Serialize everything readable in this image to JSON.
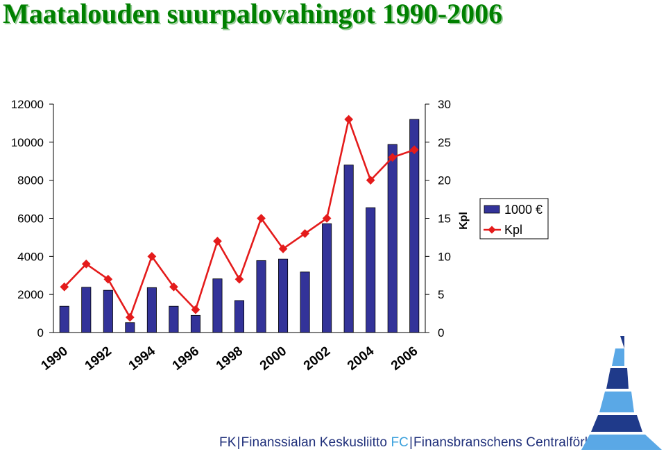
{
  "page": {
    "title": "Maatalouden suurpalovahingot 1990-2006"
  },
  "chart_data": {
    "type": "bar",
    "title": "Maatalouden suurpalovahingot 1990-2006",
    "x": [
      1990,
      1991,
      1992,
      1993,
      1994,
      1995,
      1996,
      1997,
      1998,
      1999,
      2000,
      2001,
      2002,
      2003,
      2004,
      2005,
      2006
    ],
    "x_tick_labels": [
      "1990",
      "1992",
      "1994",
      "1996",
      "1998",
      "2000",
      "2002",
      "2004",
      "2006"
    ],
    "y_left": {
      "range": [
        0,
        12000
      ],
      "ticks": [
        0,
        2000,
        4000,
        6000,
        8000,
        10000,
        12000
      ]
    },
    "y_right": {
      "label": "Kpl",
      "range": [
        0,
        30
      ],
      "ticks": [
        0,
        5,
        10,
        15,
        20,
        25,
        30
      ]
    },
    "grid": false,
    "legend_position": "right",
    "series": [
      {
        "name": "1000 €",
        "type": "bar",
        "axis": "left",
        "color": "#333399",
        "values": [
          1380,
          2380,
          2220,
          520,
          2360,
          1380,
          900,
          2820,
          1680,
          3780,
          3860,
          3180,
          5720,
          8800,
          6560,
          9880,
          11200
        ]
      },
      {
        "name": "Kpl",
        "type": "line",
        "axis": "right",
        "color": "#e41b1b",
        "values": [
          6,
          9,
          7,
          2,
          10,
          6,
          3,
          12,
          7,
          15,
          11,
          13,
          15,
          28,
          20,
          23,
          24
        ]
      }
    ]
  },
  "footer": {
    "fk": "FK",
    "fk_name": "Finanssialan Keskusliitto",
    "fc": "FC",
    "fc_name": "Finansbranschens Centralförbund",
    "separator": "|"
  },
  "logo": {
    "icon": "pyramid-logo-icon",
    "colors": [
      "#1f3a8a",
      "#5aa8e6"
    ]
  }
}
